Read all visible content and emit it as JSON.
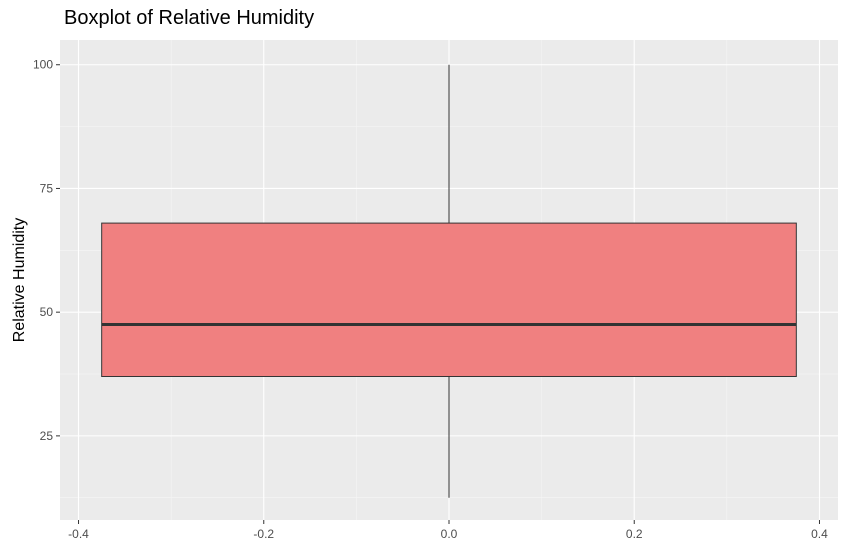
{
  "chart_data": {
    "type": "boxplot",
    "title": "Boxplot of Relative Humidity",
    "xlabel": "",
    "ylabel": "Relative Humidity",
    "xlim": [
      -0.42,
      0.42
    ],
    "ylim": [
      8,
      105
    ],
    "x_ticks": [
      -0.4,
      -0.2,
      0.0,
      0.2,
      0.4
    ],
    "x_tick_labels": [
      "-0.4",
      "-0.2",
      "0.0",
      "0.2",
      "0.4"
    ],
    "y_ticks": [
      25,
      50,
      75,
      100
    ],
    "y_tick_labels": [
      "25",
      "50",
      "75",
      "100"
    ],
    "grid": true,
    "box": {
      "x_center": 0.0,
      "x_range": [
        -0.375,
        0.375
      ],
      "whisker_low": 12.5,
      "q1": 37,
      "median": 47.5,
      "q3": 68,
      "whisker_high": 100
    }
  },
  "colors": {
    "panel_background": "#ebebeb",
    "grid_major": "#ffffff",
    "grid_minor": "#f5f5f5",
    "box_fill": "#f08080",
    "box_outline": "#333333",
    "tick_text": "#4d4d4d"
  }
}
